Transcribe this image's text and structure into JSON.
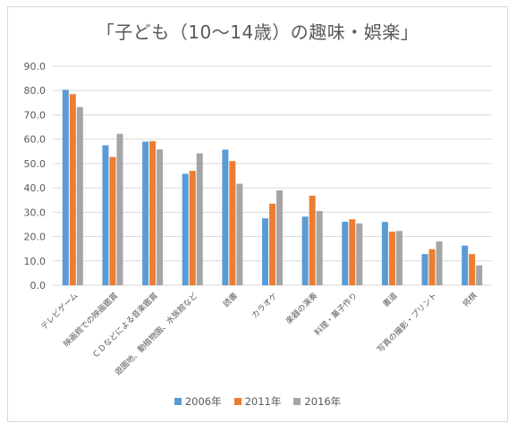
{
  "chart_data": {
    "type": "bar",
    "title": "「子ども（10～14歳）の趣味・娯楽」",
    "categories": [
      "テレビゲーム",
      "映画館での映画鑑賞",
      "ＣＤなどによる音楽鑑賞",
      "遊園地、動植物園、水族館など",
      "読書",
      "カラオケ",
      "楽器の演奏",
      "料理・菓子作り",
      "書道",
      "写真の撮影・プリント",
      "将棋"
    ],
    "series": [
      {
        "name": "2006年",
        "color": "#5b9bd5",
        "values": [
          80.3,
          57.5,
          59.0,
          45.8,
          55.7,
          27.5,
          28.2,
          26.1,
          26.0,
          12.8,
          16.3
        ]
      },
      {
        "name": "2011年",
        "color": "#ed7d31",
        "values": [
          78.5,
          52.7,
          59.2,
          47.0,
          51.0,
          33.5,
          36.8,
          27.1,
          22.0,
          14.8,
          12.8
        ]
      },
      {
        "name": "2016年",
        "color": "#a5a5a5",
        "values": [
          73.2,
          62.2,
          55.8,
          54.2,
          41.7,
          39.0,
          30.5,
          25.4,
          22.3,
          18.0,
          8.2
        ]
      }
    ],
    "ylim": [
      0,
      90
    ],
    "yticks": [
      "0.0",
      "10.0",
      "20.0",
      "30.0",
      "40.0",
      "50.0",
      "60.0",
      "70.0",
      "80.0",
      "90.0"
    ],
    "grid": true,
    "legend": "bottom"
  },
  "colors": {
    "grid": "#d9d9d9",
    "text": "#595959"
  }
}
